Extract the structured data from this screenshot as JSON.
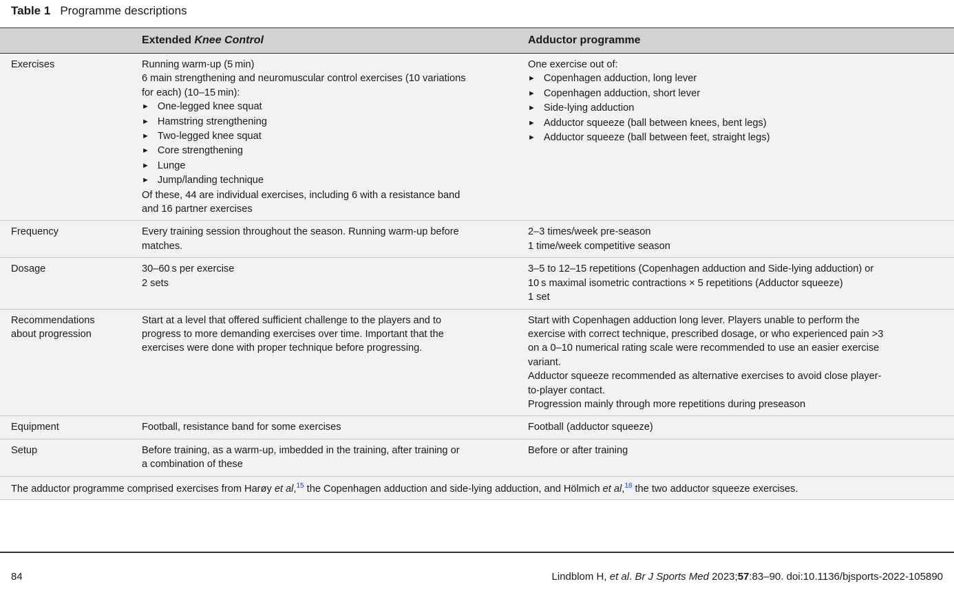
{
  "caption": {
    "label": "Table 1",
    "title": "Programme descriptions"
  },
  "header": {
    "col1": "",
    "col2_plain": "Extended ",
    "col2_italic": "Knee Control",
    "col3": "Adductor programme"
  },
  "rows": [
    {
      "label": [
        "Exercises"
      ],
      "col2": [
        {
          "t": "Running warm-up (5 min)"
        },
        {
          "t": "6 main strengthening and neuromuscular control exercises (10 variations"
        },
        {
          "t": "for each) (10–15 min):"
        },
        {
          "t": "One-legged knee squat",
          "b": true
        },
        {
          "t": "Hamstring strengthening",
          "b": true
        },
        {
          "t": "Two-legged knee squat",
          "b": true
        },
        {
          "t": "Core strengthening",
          "b": true
        },
        {
          "t": "Lunge",
          "b": true
        },
        {
          "t": "Jump/landing technique",
          "b": true
        },
        {
          "t": "Of these, 44 are individual exercises, including 6 with a resistance band"
        },
        {
          "t": "and 16 partner exercises"
        }
      ],
      "col3": [
        {
          "t": "One exercise out of:"
        },
        {
          "t": "Copenhagen adduction, long lever",
          "b": true
        },
        {
          "t": "Copenhagen adduction, short lever",
          "b": true
        },
        {
          "t": "Side-lying adduction",
          "b": true
        },
        {
          "t": "Adductor squeeze (ball between knees, bent legs)",
          "b": true
        },
        {
          "t": "Adductor squeeze (ball between feet, straight legs)",
          "b": true
        }
      ]
    },
    {
      "label": [
        "Frequency"
      ],
      "col2": [
        {
          "t": "Every training session throughout the season. Running warm-up before"
        },
        {
          "t": "matches."
        }
      ],
      "col3": [
        {
          "t": "2–3 times/week pre-season"
        },
        {
          "t": "1 time/week competitive season"
        }
      ]
    },
    {
      "label": [
        "Dosage"
      ],
      "col2": [
        {
          "t": "30–60 s per exercise"
        },
        {
          "t": "2 sets"
        }
      ],
      "col3": [
        {
          "t": "3–5 to 12–15 repetitions (Copenhagen adduction and Side-lying adduction) or"
        },
        {
          "t": "10 s maximal isometric contractions × 5 repetitions (Adductor squeeze)"
        },
        {
          "t": "1 set"
        }
      ]
    },
    {
      "label": [
        "Recommendations",
        "about progression"
      ],
      "col2": [
        {
          "t": "Start at a level that offered sufficient challenge to the players and to"
        },
        {
          "t": "progress to more demanding exercises over time. Important that the"
        },
        {
          "t": "exercises were done with proper technique before progressing."
        }
      ],
      "col3": [
        {
          "t": "Start with Copenhagen adduction long lever. Players unable to perform the"
        },
        {
          "t": "exercise with correct technique, prescribed dosage, or who experienced pain >3"
        },
        {
          "t": "on a 0–10 numerical rating scale were recommended to use an easier exercise"
        },
        {
          "t": "variant."
        },
        {
          "t": "Adductor squeeze recommended as alternative exercises to avoid close player-"
        },
        {
          "t": "to-player contact."
        },
        {
          "t": "Progression mainly through more repetitions during preseason"
        }
      ]
    },
    {
      "label": [
        "Equipment"
      ],
      "col2": [
        {
          "t": "Football, resistance band for some exercises"
        }
      ],
      "col3": [
        {
          "t": "Football (adductor squeeze)"
        }
      ]
    },
    {
      "label": [
        "Setup"
      ],
      "col2": [
        {
          "t": "Before training, as a warm-up, imbedded in the training, after training or"
        },
        {
          "t": "a combination of these"
        }
      ],
      "col3": [
        {
          "t": "Before or after training"
        }
      ]
    }
  ],
  "footnote": {
    "p1": "The adductor programme comprised exercises from Harøy ",
    "i1": "et al",
    "p2": ",",
    "s1": "15",
    "p3": " the Copenhagen adduction and side-lying adduction, and Hölmich ",
    "i2": "et al",
    "p4": ",",
    "s2": "18",
    "p5": " the two adductor squeeze exercises."
  },
  "page": {
    "number": "84",
    "cite_authors": "Lindblom H, ",
    "cite_etal": "et al",
    "cite_sep": ". ",
    "cite_journal": "Br J Sports Med",
    "cite_year": " 2023;",
    "cite_vol": "57",
    "cite_rest": ":83–90. doi:10.1136/bjsports-2022-105890"
  }
}
